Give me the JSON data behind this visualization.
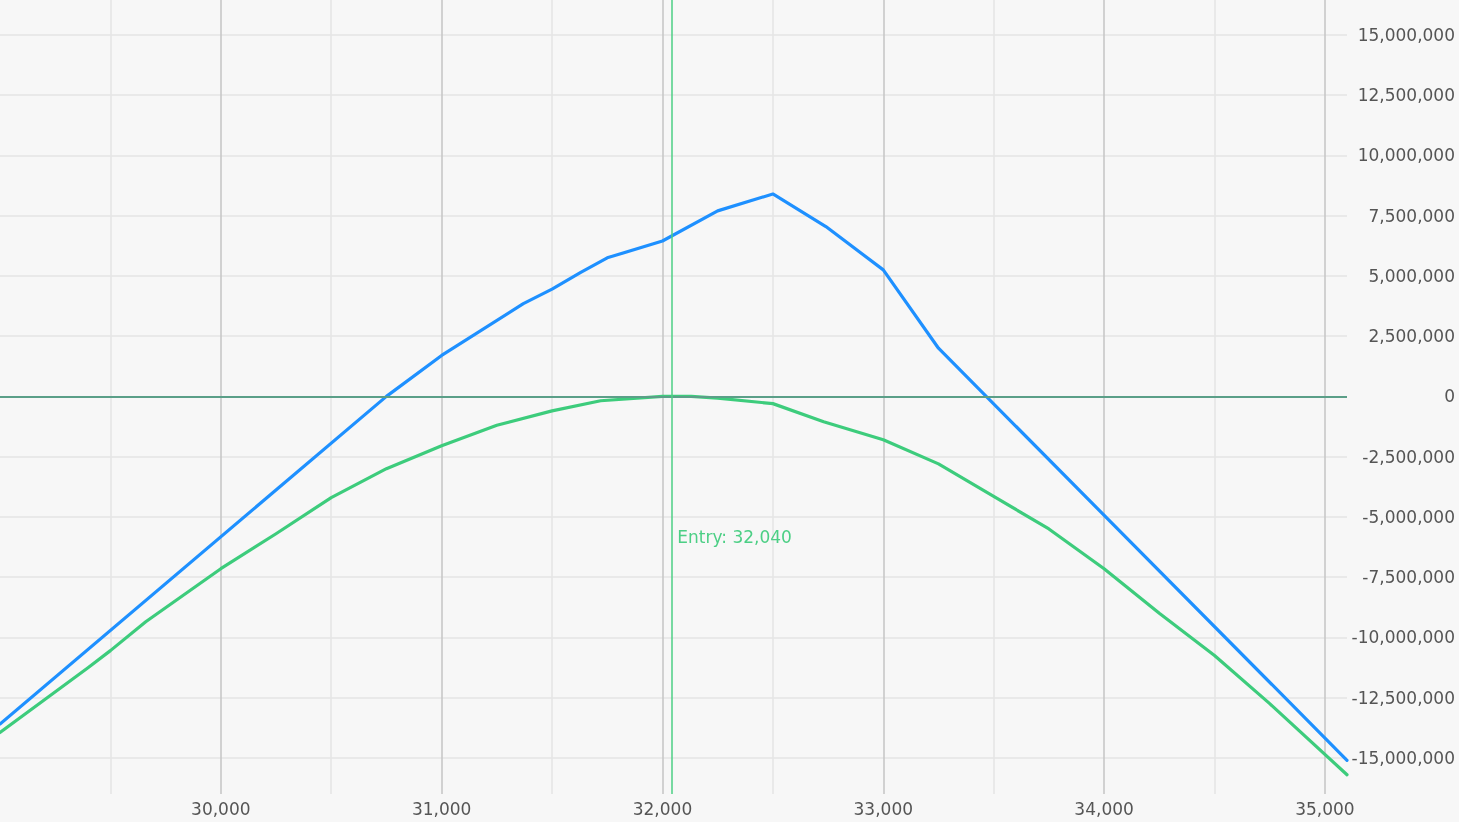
{
  "chart_data": {
    "type": "line",
    "xlim": [
      29000,
      35100
    ],
    "xticks": [
      {
        "value": 29500,
        "label": null
      },
      {
        "value": 30000,
        "label": "30,000"
      },
      {
        "value": 30500,
        "label": null
      },
      {
        "value": 31000,
        "label": "31,000"
      },
      {
        "value": 31500,
        "label": null
      },
      {
        "value": 32000,
        "label": "32,000"
      },
      {
        "value": 32500,
        "label": null
      },
      {
        "value": 33000,
        "label": "33,000"
      },
      {
        "value": 33500,
        "label": null
      },
      {
        "value": 34000,
        "label": "34,000"
      },
      {
        "value": 34500,
        "label": null
      },
      {
        "value": 35000,
        "label": "35,000"
      }
    ],
    "ylim": [
      -16500000,
      16450000
    ],
    "yticks": [
      {
        "value": -15000000,
        "label": "-15,000,000"
      },
      {
        "value": -12500000,
        "label": "-12,500,000"
      },
      {
        "value": -10000000,
        "label": "-10,000,000"
      },
      {
        "value": -7500000,
        "label": "-7,500,000"
      },
      {
        "value": -5000000,
        "label": "-5,000,000"
      },
      {
        "value": -2500000,
        "label": "-2,500,000"
      },
      0,
      {
        "value": 2500000,
        "label": "2,500,000"
      },
      {
        "value": 5000000,
        "label": "5,000,000"
      },
      {
        "value": 7500000,
        "label": "7,500,000"
      },
      {
        "value": 10000000,
        "label": "10,000,000"
      },
      {
        "value": 12500000,
        "label": "12,500,000"
      },
      {
        "value": 15000000,
        "label": "15,000,000"
      }
    ],
    "grid": true,
    "marker": "none",
    "line_style": "solid",
    "series": [
      {
        "color": "#1e90ff",
        "x": [
          29000,
          30750,
          31000,
          31370,
          31500,
          31630,
          31750,
          32000,
          32250,
          32500,
          32740,
          33000,
          33250,
          35100
        ],
        "values": [
          -13600000,
          0,
          1700000,
          3850000,
          4450000,
          5150000,
          5750000,
          6450000,
          7700000,
          8400000,
          7050000,
          5250000,
          2000000,
          -15100000
        ]
      },
      {
        "color": "#3dcc7c",
        "x": [
          29000,
          29200,
          29400,
          29500,
          29660,
          30000,
          30250,
          30500,
          30750,
          31000,
          31250,
          31500,
          31720,
          32000,
          32130,
          32250,
          32500,
          32730,
          33000,
          33250,
          33500,
          33750,
          34000,
          34250,
          34500,
          34750,
          35100
        ],
        "values": [
          -13950000,
          -12600000,
          -11250000,
          -10550000,
          -9350000,
          -7150000,
          -5700000,
          -4200000,
          -3000000,
          -2050000,
          -1200000,
          -600000,
          -180000,
          0,
          0,
          -70000,
          -300000,
          -1050000,
          -1800000,
          -2800000,
          -4150000,
          -5500000,
          -7150000,
          -9000000,
          -10750000,
          -12750000,
          -15700000
        ]
      }
    ],
    "ref_lines": [
      {
        "axis": "y",
        "value": 0,
        "color": "#5b9f88"
      },
      {
        "axis": "x",
        "value": 32040,
        "label": "Entry: 32,040",
        "color": "#4ccf85"
      }
    ]
  }
}
